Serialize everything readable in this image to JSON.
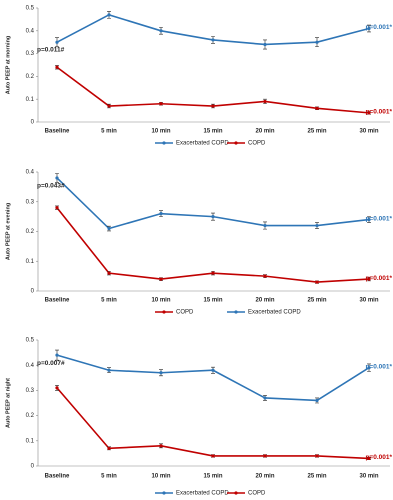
{
  "chart_data": [
    {
      "type": "line",
      "y_label": "Auto PEEP at morning",
      "categories": [
        "Baseline",
        "5 min",
        "10 min",
        "15 min",
        "20 min",
        "25 min",
        "30 min"
      ],
      "ylim": [
        0,
        0.5
      ],
      "yticks": [
        0,
        0.1,
        0.2,
        0.3,
        0.4,
        0.5
      ],
      "baseline_annotation": "p=0.011#",
      "series": [
        {
          "name": "Exacerbated COPD",
          "color": "#2e75b6",
          "values": [
            0.35,
            0.47,
            0.4,
            0.36,
            0.34,
            0.35,
            0.41
          ],
          "errors": [
            0.02,
            0.015,
            0.015,
            0.015,
            0.02,
            0.02,
            0.015
          ],
          "annotation": "p=0.001*"
        },
        {
          "name": "COPD",
          "color": "#c00000",
          "values": [
            0.24,
            0.07,
            0.08,
            0.07,
            0.09,
            0.06,
            0.04
          ],
          "errors": [
            0.008,
            0.008,
            0.006,
            0.008,
            0.01,
            0.006,
            0.006
          ],
          "annotation": "p=0.001*"
        }
      ]
    },
    {
      "type": "line",
      "y_label": "Auto PEEP at evening",
      "categories": [
        "Baseline",
        "5 min",
        "10 min",
        "15 min",
        "20 min",
        "25 min",
        "30 min"
      ],
      "ylim": [
        0,
        0.4
      ],
      "yticks": [
        0,
        0.1,
        0.2,
        0.3,
        0.4
      ],
      "baseline_annotation": "p=0.043#",
      "series": [
        {
          "name": "COPD",
          "color": "#c00000",
          "values": [
            0.28,
            0.06,
            0.04,
            0.06,
            0.05,
            0.03,
            0.04
          ],
          "errors": [
            0.006,
            0.006,
            0.005,
            0.006,
            0.005,
            0.004,
            0.006
          ],
          "annotation": "p=0.001*"
        },
        {
          "name": "Exacerbated COPD",
          "color": "#2e75b6",
          "values": [
            0.38,
            0.21,
            0.26,
            0.25,
            0.22,
            0.22,
            0.24
          ],
          "errors": [
            0.015,
            0.008,
            0.01,
            0.012,
            0.012,
            0.01,
            0.01
          ],
          "annotation": "p=0.001*"
        }
      ]
    },
    {
      "type": "line",
      "y_label": "Auto PEEP at night",
      "categories": [
        "Baseline",
        "5 min",
        "10 min",
        "15 min",
        "20 min",
        "25 min",
        "30 min"
      ],
      "ylim": [
        0,
        0.5
      ],
      "yticks": [
        0,
        0.1,
        0.2,
        0.3,
        0.4,
        0.5
      ],
      "baseline_annotation": "p=0.007#",
      "series": [
        {
          "name": "Exacerbated COPD",
          "color": "#2e75b6",
          "values": [
            0.44,
            0.38,
            0.37,
            0.38,
            0.27,
            0.26,
            0.39
          ],
          "errors": [
            0.02,
            0.01,
            0.012,
            0.012,
            0.01,
            0.01,
            0.015
          ],
          "annotation": "p=0.001*"
        },
        {
          "name": "COPD",
          "color": "#c00000",
          "values": [
            0.31,
            0.07,
            0.08,
            0.04,
            0.04,
            0.04,
            0.03
          ],
          "errors": [
            0.01,
            0.006,
            0.008,
            0.005,
            0.005,
            0.005,
            0.005
          ],
          "annotation": "p=0.001*"
        }
      ]
    }
  ]
}
